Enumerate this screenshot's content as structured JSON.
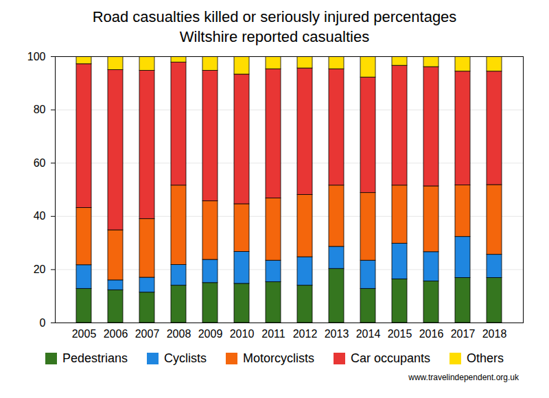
{
  "chart_data": {
    "type": "bar",
    "title": "Road casualties killed or seriously injured percentages",
    "subtitle": "Wiltshire reported casualties",
    "caption": "www.travelindependent.org.uk",
    "stacked": true,
    "grid": true,
    "legend": "bottom",
    "categories": [
      "2005",
      "2006",
      "2007",
      "2008",
      "2009",
      "2010",
      "2011",
      "2012",
      "2013",
      "2014",
      "2015",
      "2016",
      "2017",
      "2018"
    ],
    "series": [
      {
        "name": "Pedestrians",
        "color": "#35761f",
        "values": [
          12.8,
          12.3,
          11.4,
          14.0,
          15.0,
          14.7,
          15.3,
          14.0,
          20.3,
          12.8,
          16.4,
          15.6,
          16.9,
          16.9
        ]
      },
      {
        "name": "Cyclists",
        "color": "#1f86e0",
        "values": [
          8.9,
          3.7,
          5.6,
          7.8,
          8.7,
          12.0,
          8.1,
          10.7,
          8.3,
          10.6,
          13.4,
          11.0,
          15.4,
          8.7
        ]
      },
      {
        "name": "Motorcyclists",
        "color": "#f4660c",
        "values": [
          21.5,
          18.8,
          22.0,
          29.8,
          22.0,
          17.9,
          23.4,
          23.4,
          23.0,
          25.4,
          21.8,
          24.7,
          19.4,
          26.2
        ]
      },
      {
        "name": "Car occupants",
        "color": "#e83634",
        "values": [
          54.0,
          60.2,
          55.7,
          46.2,
          49.0,
          48.7,
          48.5,
          47.5,
          43.7,
          43.4,
          45.0,
          44.8,
          42.7,
          42.6
        ]
      },
      {
        "name": "Others",
        "color": "#ffdd00",
        "values": [
          2.8,
          5.0,
          5.3,
          2.2,
          5.3,
          6.7,
          4.7,
          4.4,
          4.7,
          7.8,
          3.4,
          3.9,
          5.6,
          5.6
        ]
      }
    ],
    "ylim": [
      0,
      100
    ],
    "yticks": [
      0,
      20,
      40,
      60,
      80,
      100
    ]
  }
}
